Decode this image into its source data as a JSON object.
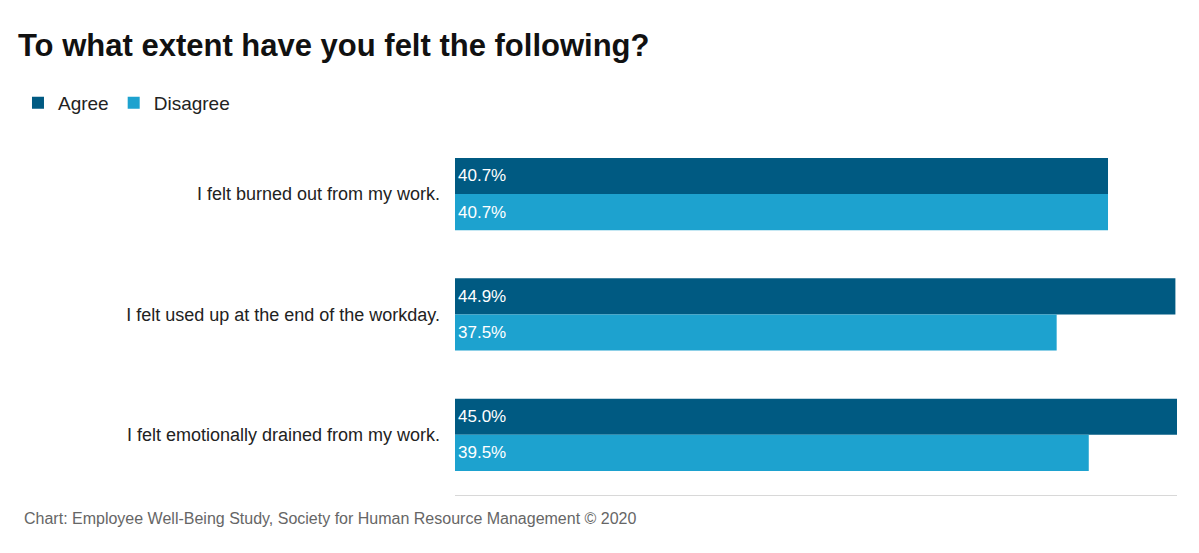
{
  "chart_data": {
    "type": "bar",
    "orientation": "horizontal",
    "title": "To what extent have you felt the following?",
    "categories": [
      "I felt burned out from my work.",
      "I felt used up at the end of the workday.",
      "I felt emotionally drained from my work."
    ],
    "series": [
      {
        "name": "Agree",
        "color": "#005a82",
        "values": [
          40.7,
          44.9,
          45.0
        ],
        "value_labels": [
          "40.7%",
          "44.9%",
          "45.0%"
        ]
      },
      {
        "name": "Disagree",
        "color": "#1da2cf",
        "values": [
          40.7,
          37.5,
          39.5
        ],
        "value_labels": [
          "40.7%",
          "37.5%",
          "39.5%"
        ]
      }
    ],
    "xlim": [
      0,
      45
    ],
    "grid": false,
    "legend": "top-left",
    "data_labels": true,
    "tick_labels": "y",
    "annotations": [
      "Chart: Employee Well-Being Study, Society for Human Resource Management © 2020"
    ]
  }
}
